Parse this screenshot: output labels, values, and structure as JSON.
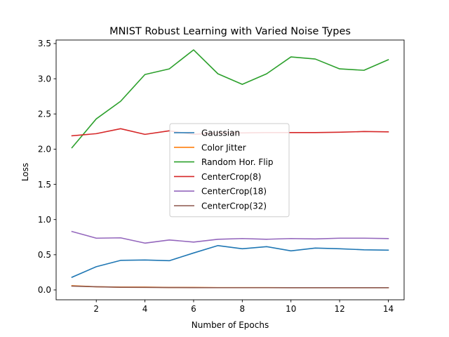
{
  "chart_data": {
    "type": "line",
    "title": "MNIST Robust Learning with Varied Noise Types",
    "xlabel": "Number of Epochs",
    "ylabel": "Loss",
    "x": [
      1,
      2,
      3,
      4,
      5,
      6,
      7,
      8,
      9,
      10,
      11,
      12,
      13,
      14
    ],
    "xlim": [
      0.35,
      14.65
    ],
    "ylim": [
      -0.14,
      3.55
    ],
    "xticks": [
      2,
      4,
      6,
      8,
      10,
      12,
      14
    ],
    "yticks": [
      0.0,
      0.5,
      1.0,
      1.5,
      2.0,
      2.5,
      3.0,
      3.5
    ],
    "xtick_labels": [
      "2",
      "4",
      "6",
      "8",
      "10",
      "12",
      "14"
    ],
    "ytick_labels": [
      "0.0",
      "0.5",
      "1.0",
      "1.5",
      "2.0",
      "2.5",
      "3.0",
      "3.5"
    ],
    "grid": false,
    "legend_position": "center",
    "series": [
      {
        "name": "Gaussian",
        "color": "#1f77b4",
        "values": [
          0.18,
          0.33,
          0.42,
          0.425,
          0.415,
          0.525,
          0.63,
          0.585,
          0.615,
          0.555,
          0.595,
          0.585,
          0.57,
          0.565
        ]
      },
      {
        "name": "Color Jitter",
        "color": "#ff7f0e",
        "values": [
          0.06,
          0.045,
          0.04,
          0.04,
          0.035,
          0.035,
          0.033,
          0.033,
          0.033,
          0.032,
          0.032,
          0.032,
          0.032,
          0.032
        ]
      },
      {
        "name": "Random Hor. Flip",
        "color": "#2ca02c",
        "values": [
          2.02,
          2.43,
          2.68,
          3.06,
          3.14,
          3.41,
          3.07,
          2.92,
          3.07,
          3.31,
          3.28,
          3.14,
          3.12,
          3.27
        ]
      },
      {
        "name": "CenterCrop(8)",
        "color": "#d62728",
        "values": [
          2.19,
          2.22,
          2.29,
          2.21,
          2.26,
          2.21,
          2.23,
          2.23,
          2.235,
          2.235,
          2.235,
          2.24,
          2.25,
          2.245
        ]
      },
      {
        "name": "CenterCrop(18)",
        "color": "#9467bd",
        "values": [
          0.83,
          0.735,
          0.74,
          0.665,
          0.71,
          0.68,
          0.72,
          0.73,
          0.72,
          0.73,
          0.725,
          0.735,
          0.735,
          0.73
        ]
      },
      {
        "name": "CenterCrop(32)",
        "color": "#8c564b",
        "values": [
          0.055,
          0.045,
          0.038,
          0.036,
          0.034,
          0.033,
          0.032,
          0.032,
          0.032,
          0.031,
          0.031,
          0.031,
          0.031,
          0.031
        ]
      }
    ]
  }
}
